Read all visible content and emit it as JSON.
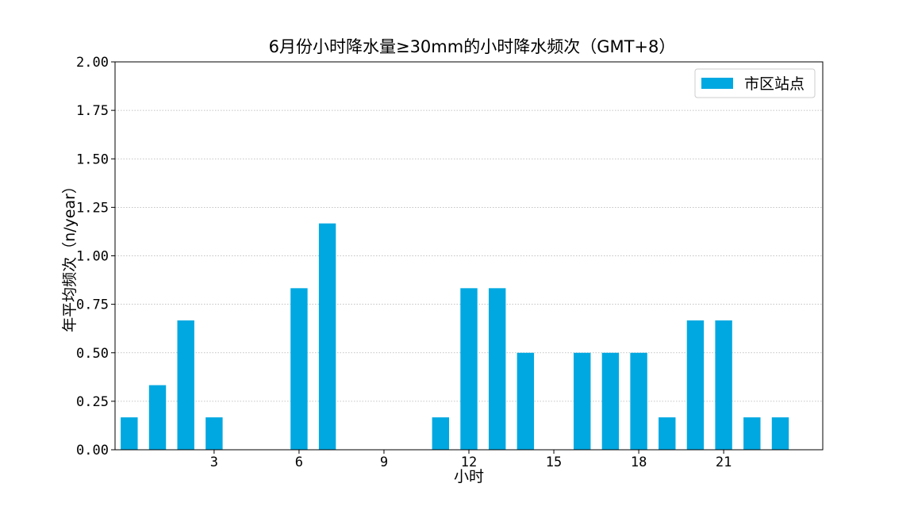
{
  "chart_data": {
    "type": "bar",
    "title": "6月份小时降水量≥30mm的小时降水频次（GMT+8）",
    "xlabel": "小时",
    "ylabel": "年平均频次（n/year）",
    "ylim": [
      0,
      2.0
    ],
    "xlim": [
      -0.5,
      24.5
    ],
    "yticks": [
      "0.00",
      "0.25",
      "0.50",
      "0.75",
      "1.00",
      "1.25",
      "1.50",
      "1.75",
      "2.00"
    ],
    "yticks_values": [
      0,
      0.25,
      0.5,
      0.75,
      1.0,
      1.25,
      1.5,
      1.75,
      2.0
    ],
    "xticks": [
      "3",
      "6",
      "9",
      "12",
      "15",
      "18",
      "21"
    ],
    "xticks_values": [
      3,
      6,
      9,
      12,
      15,
      18,
      21
    ],
    "grid": "horizontal",
    "legend_position": "top-right",
    "series": [
      {
        "name": "市区站点",
        "color": "#00a8e1",
        "x": [
          0,
          1,
          2,
          3,
          4,
          5,
          6,
          7,
          8,
          9,
          10,
          11,
          12,
          13,
          14,
          15,
          16,
          17,
          18,
          19,
          20,
          21,
          22,
          23
        ],
        "values": [
          0.167,
          0.333,
          0.667,
          0.167,
          0,
          0,
          0.833,
          1.167,
          0,
          0,
          0,
          0.167,
          0.833,
          0.833,
          0.5,
          0,
          0.5,
          0.5,
          0.5,
          0.167,
          0.667,
          0.667,
          0.167,
          0.167
        ]
      }
    ]
  }
}
